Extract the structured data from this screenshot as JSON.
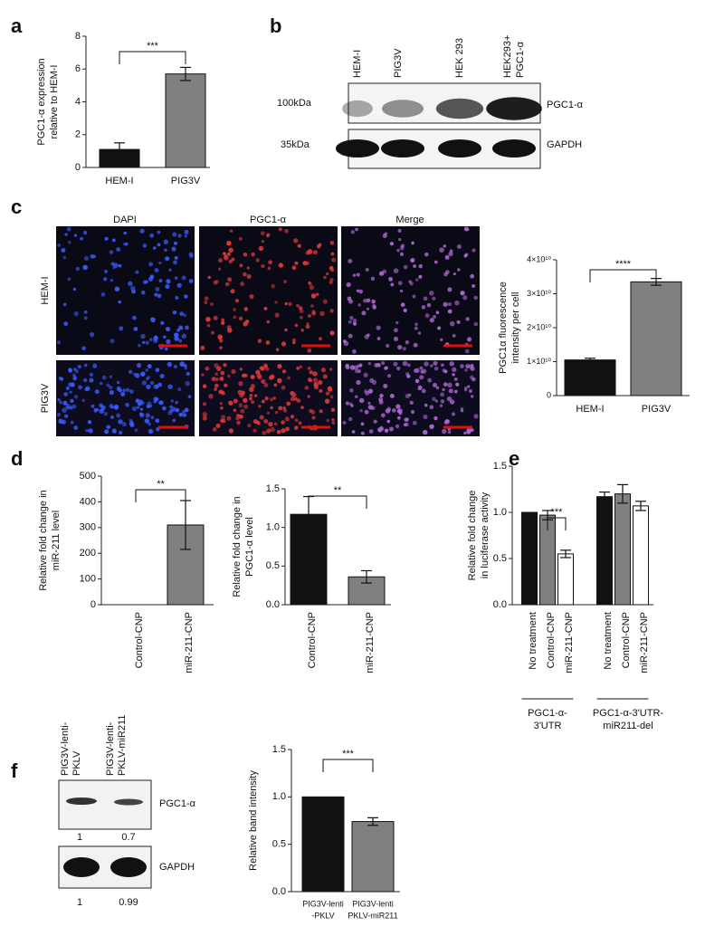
{
  "panel_labels": [
    "a",
    "b",
    "c",
    "d",
    "e",
    "f"
  ],
  "blot_b": {
    "lanes": [
      [
        "HEM-I"
      ],
      [
        "PIG3V"
      ],
      [
        "HEK 293"
      ],
      [
        "HEK293+",
        "PGC1-α"
      ]
    ],
    "markers": [
      "100kDa",
      "35kDa"
    ],
    "proteins": [
      "PGC1-α",
      "GAPDH"
    ]
  },
  "images_c": {
    "columns": [
      "DAPI",
      "PGC1-α",
      "Merge"
    ],
    "rows": [
      "HEM-I",
      "PIG3V"
    ]
  },
  "blot_f": {
    "lanes": [
      [
        "PIG3V-lenti-",
        "PKLV"
      ],
      [
        "PIG3V-lenti-",
        "PKLV-miR211"
      ]
    ],
    "proteins": [
      "PGC1-α",
      "GAPDH"
    ],
    "quantification": [
      [
        1,
        0.7
      ],
      [
        1,
        0.99
      ]
    ]
  },
  "chart_data": [
    {
      "type": "bar",
      "categories": [
        "HEM-I",
        "PIG3V"
      ],
      "values": [
        1.1,
        5.7
      ],
      "errors": [
        0.4,
        0.4
      ],
      "colors": [
        "#111111",
        "#808080"
      ],
      "ylim": [
        0,
        8
      ],
      "yticks": [
        0,
        2,
        4,
        6,
        8
      ],
      "ylabel": [
        "PGC1-α expression",
        "relative to HEM-I"
      ],
      "significance": {
        "label": "***",
        "between": [
          0,
          1
        ]
      }
    },
    {
      "type": "bar",
      "categories": [
        "HEM-I",
        "PIG3V"
      ],
      "values": [
        10500000000,
        33500000000
      ],
      "errors": [
        500000000,
        1000000000
      ],
      "colors": [
        "#111111",
        "#808080"
      ],
      "ylim": [
        0,
        40000000000
      ],
      "yticks": [
        0,
        {
          "value": 10000000000,
          "label": "1×10¹⁰"
        },
        {
          "value": 20000000000,
          "label": "2×10¹⁰"
        },
        {
          "value": 30000000000,
          "label": "3×10¹⁰"
        },
        {
          "value": 40000000000,
          "label": "4×10¹⁰"
        }
      ],
      "ylabel": [
        "PGC1α fluorescence",
        "intensity per cell"
      ],
      "significance": {
        "label": "****",
        "between": [
          0,
          1
        ]
      }
    },
    {
      "type": "bar",
      "categories": [
        "Control-CNP",
        "miR-211-CNP"
      ],
      "values": [
        0,
        310
      ],
      "errors": [
        null,
        95
      ],
      "colors": [
        "#111111",
        "#808080"
      ],
      "ylim": [
        0,
        500
      ],
      "yticks": [
        0,
        100,
        200,
        300,
        400,
        500
      ],
      "ylabel": [
        "Relative fold change in",
        "miR-211 level"
      ],
      "significance": {
        "label": "**",
        "between": [
          0,
          1
        ]
      }
    },
    {
      "type": "bar",
      "categories": [
        "Control-CNP",
        "miR-211-CNP"
      ],
      "values": [
        1.17,
        0.36
      ],
      "errors": [
        0.23,
        0.08
      ],
      "colors": [
        "#111111",
        "#808080"
      ],
      "ylim": [
        0,
        1.5
      ],
      "yticks": [
        {
          "value": 0,
          "label": "0.0"
        },
        0.5,
        {
          "value": 1,
          "label": "1.0"
        },
        1.5
      ],
      "ylabel": [
        "Relative fold change in",
        "PGC1-α level"
      ],
      "significance": {
        "label": "**",
        "between": [
          0,
          1
        ]
      }
    },
    {
      "type": "bar",
      "categories": [
        "No treatment",
        "Control-CNP",
        "miR-211-CNP",
        "No treatment",
        "Control-CNP",
        "miR-211-CNP"
      ],
      "values": [
        1.0,
        0.97,
        0.55,
        1.17,
        1.2,
        1.07
      ],
      "errors": [
        null,
        0.05,
        0.04,
        0.05,
        0.1,
        0.05
      ],
      "colors": [
        "#111111",
        "#808080",
        "#ffffff",
        "#111111",
        "#808080",
        "#ffffff"
      ],
      "ylim": [
        0,
        1.5
      ],
      "yticks": [
        {
          "value": 0,
          "label": "0.0"
        },
        0.5,
        {
          "value": 1,
          "label": "1.0"
        },
        1.5
      ],
      "ylabel": [
        "Relative fold change",
        "in luciferase activity"
      ],
      "significance": {
        "label": "***",
        "between": [
          1,
          2
        ]
      },
      "groups": [
        {
          "label": [
            "PGC1-α-",
            "3'UTR"
          ],
          "from": 0,
          "to": 2
        },
        {
          "label": [
            "PGC1-α-3'UTR-",
            "miR211-del"
          ],
          "from": 3,
          "to": 5
        }
      ]
    },
    {
      "type": "bar",
      "categories": [
        [
          "PIG3V-lenti",
          "-PKLV"
        ],
        [
          "PIG3V-lenti",
          "PKLV-miR211"
        ]
      ],
      "values": [
        1.0,
        0.74
      ],
      "errors": [
        null,
        0.04
      ],
      "colors": [
        "#111111",
        "#808080"
      ],
      "ylim": [
        0,
        1.5
      ],
      "yticks": [
        {
          "value": 0,
          "label": "0.0"
        },
        0.5,
        {
          "value": 1,
          "label": "1.0"
        },
        1.5
      ],
      "ylabel": [
        "Relative band intensity"
      ],
      "significance": {
        "label": "***",
        "between": [
          0,
          1
        ]
      }
    }
  ]
}
